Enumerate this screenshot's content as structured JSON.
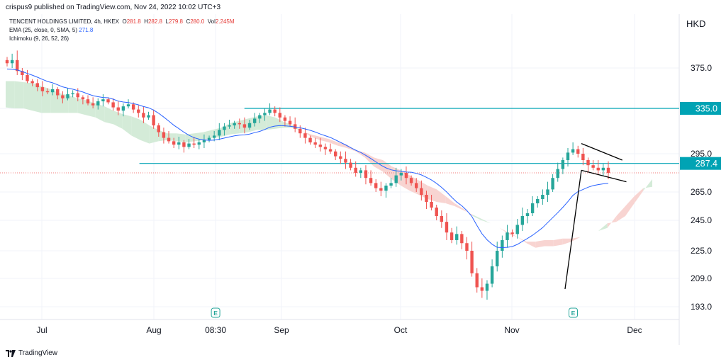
{
  "header": {
    "published": "crispus9 published on TradingView.com, Nov 24, 2022 10:02 UTC+3"
  },
  "legend": {
    "symbol": "TENCENT HOLDINGS LIMITED, 4h, HKEX",
    "o_label": "O",
    "o_value": "281.8",
    "h_label": "H",
    "h_value": "282.8",
    "l_label": "L",
    "l_value": "279.8",
    "c_label": "C",
    "c_value": "280.0",
    "vol_label": "Vol",
    "vol_value": "2.245M",
    "ema_label": "EMA (25, close, 0, SMA, 5)",
    "ema_value": "271.8",
    "ichimoku_label": "Ichimoku (9, 26, 52, 26)"
  },
  "currency": "HKD",
  "footer": {
    "brand": "TradingView"
  },
  "colors": {
    "up": "#26a69a",
    "down": "#ef5350",
    "ema": "#2962ff",
    "hline": "#00a3b4",
    "cloud_bear": "#f8d2cf",
    "cloud_bull": "#d2ead6",
    "trendline": "#000000"
  },
  "chart_data": {
    "type": "candlestick",
    "title": "TENCENT HOLDINGS LIMITED, 4h, HKEX",
    "ylabel": "HKD",
    "y_ticks": [
      {
        "label": "375.0",
        "value": 375.0
      },
      {
        "label": "335.0",
        "value": 335.0
      },
      {
        "label": "295.0",
        "value": 295.0
      },
      {
        "label": "265.0",
        "value": 265.0
      },
      {
        "label": "245.0",
        "value": 245.0
      },
      {
        "label": "225.0",
        "value": 225.0
      },
      {
        "label": "209.0",
        "value": 209.0
      },
      {
        "label": "193.0",
        "value": 193.0
      }
    ],
    "x_ticks": [
      {
        "label": "Jul",
        "date": "2022-07-01"
      },
      {
        "label": "Aug",
        "date": "2022-08-01"
      },
      {
        "label": "08:30",
        "date": "2022-08-16"
      },
      {
        "label": "Sep",
        "date": "2022-09-01"
      },
      {
        "label": "Oct",
        "date": "2022-10-03"
      },
      {
        "label": "Nov",
        "date": "2022-11-01"
      },
      {
        "label": "Dec",
        "date": "2022-12-01"
      }
    ],
    "earnings_markers": [
      {
        "label": "E",
        "date": "2022-08-16"
      },
      {
        "label": "E",
        "date": "2022-11-16"
      }
    ],
    "horizontal_lines": [
      {
        "value": 335.0,
        "label": "335.0",
        "from": "2022-08-23"
      },
      {
        "value": 287.4,
        "label": "287.4",
        "from": "2022-07-28"
      }
    ],
    "last_price": 280.0,
    "ohlc_last": {
      "open": 281.8,
      "high": 282.8,
      "low": 279.8,
      "close": 280.0
    },
    "ema_last": 271.8,
    "closes": [
      378,
      380,
      372,
      368,
      362,
      360,
      356,
      352,
      351,
      354,
      348,
      345,
      349,
      350,
      346,
      344,
      340,
      338,
      342,
      344,
      341,
      336,
      333,
      337,
      339,
      334,
      331,
      327,
      329,
      320,
      314,
      309,
      306,
      303,
      305,
      301,
      304,
      303,
      305,
      307,
      309,
      311,
      316,
      319,
      320,
      322,
      321,
      318,
      322,
      326,
      329,
      331,
      334,
      331,
      327,
      324,
      321,
      317,
      313,
      309,
      305,
      303,
      301,
      299,
      297,
      293,
      291,
      288,
      284,
      280,
      282,
      276,
      272,
      268,
      266,
      270,
      272,
      278,
      280,
      276,
      272,
      268,
      263,
      258,
      254,
      248,
      244,
      237,
      232,
      236,
      230,
      225,
      212,
      204,
      202,
      206,
      216,
      225,
      232,
      237,
      236,
      242,
      248,
      250,
      257,
      260,
      263,
      267,
      276,
      283,
      290,
      296,
      299,
      295,
      290,
      286,
      284,
      282,
      284,
      280
    ],
    "ema_series": [
      374,
      373.8,
      373,
      371.5,
      369.6,
      367.9,
      365.9,
      363.7,
      361.7,
      360.3,
      358.4,
      356.3,
      355.1,
      354,
      352.6,
      351.2,
      349.3,
      347.6,
      346.6,
      345.8,
      345.5,
      344.1,
      342.2,
      341.3,
      340.8,
      339.8,
      338.5,
      336.8,
      335.6,
      333.5,
      330.7,
      327.4,
      323.8,
      320.1,
      317.1,
      314,
      311.3,
      309.2,
      307.9,
      307.2,
      306.8,
      307,
      307.8,
      308.8,
      309.8,
      310.8,
      311.4,
      311.6,
      312.4,
      313.6,
      314.7,
      316.4,
      318.4,
      319.4,
      319.9,
      319.6,
      319.2,
      318.6,
      317.9,
      316.9,
      315.6,
      314.1,
      312.4,
      310.9,
      309.3,
      307.2,
      305,
      302.8,
      300.4,
      298.1,
      296.1,
      293.7,
      291.2,
      288.6,
      286,
      283.9,
      282.4,
      281.6,
      281.3,
      280.6,
      280.5,
      279.6,
      278.4,
      276.5,
      274.4,
      271.8,
      268.6,
      265,
      261.3,
      257.9,
      255.3,
      251.9,
      247.7,
      241.6,
      236.2,
      232.2,
      229.3,
      227.3,
      227.1,
      227.3,
      227.8,
      229.2,
      231.2,
      233.1,
      235.2,
      237.6,
      240.2,
      243.5,
      246.9,
      250.4,
      254.2,
      258.2,
      262.6,
      265.3,
      267,
      268.7,
      270,
      270.8,
      271.4,
      271.8
    ],
    "cloud": {
      "span_a": [
        362,
        362,
        361,
        360,
        357,
        354,
        350,
        348,
        345,
        343,
        340,
        337,
        333,
        330,
        328,
        325,
        320,
        316,
        313,
        313,
        312,
        313,
        314,
        316,
        318,
        322,
        324,
        326,
        328,
        329,
        327,
        323,
        320,
        315,
        310,
        307,
        305,
        302,
        300,
        297,
        292,
        285,
        281,
        275,
        270,
        266,
        263,
        260,
        258,
        257,
        255,
        252,
        249,
        246,
        243,
        240,
        236,
        234,
        230,
        227,
        228,
        228,
        229,
        231,
        234,
        236,
        238,
        243,
        244,
        248,
        257,
        266,
        275
      ],
      "span_b": [
        336,
        335,
        335,
        333,
        331,
        331,
        331,
        331,
        331,
        329,
        327,
        323,
        321,
        317,
        311,
        307,
        304,
        306,
        307,
        306,
        305,
        306,
        307,
        309,
        310,
        312,
        313,
        314,
        316,
        316,
        317,
        318,
        318,
        315,
        312,
        310,
        308,
        305,
        303,
        298,
        296,
        292,
        290,
        285,
        282,
        278,
        274,
        270,
        267,
        262,
        257,
        253,
        248,
        245,
        243,
        240,
        237,
        234,
        231,
        231,
        232,
        232,
        233,
        233,
        234,
        236,
        238,
        240,
        248,
        255,
        262,
        268,
        269
      ]
    },
    "trendlines": [
      {
        "name": "flagpole-line",
        "points": [
          [
            "2022-11-14",
            203
          ],
          [
            "2022-11-18",
            282
          ]
        ]
      },
      {
        "name": "pennant-upper",
        "points": [
          [
            "2022-11-18",
            304
          ],
          [
            "2022-11-28",
            290
          ]
        ]
      },
      {
        "name": "pennant-lower",
        "points": [
          [
            "2022-11-18",
            282
          ],
          [
            "2022-11-29",
            273
          ]
        ]
      }
    ]
  }
}
